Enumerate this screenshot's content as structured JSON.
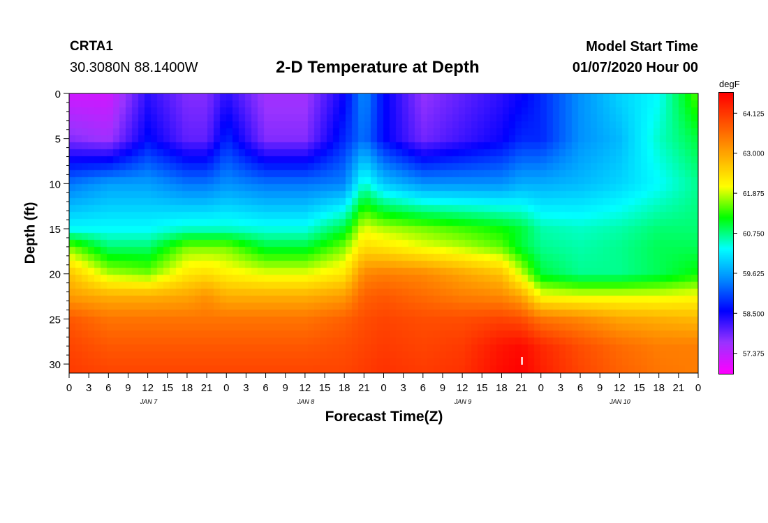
{
  "header": {
    "station_id": "CRTA1",
    "coordinates": "30.3080N 88.1400W",
    "title": "2-D Temperature at Depth",
    "model_start_label": "Model Start Time",
    "model_start_value": "01/07/2020 Hour 00"
  },
  "chart_data": {
    "type": "heatmap",
    "title": "2-D Temperature at Depth",
    "xlabel": "Forecast Time(Z)",
    "ylabel": "Depth (ft)",
    "unit": "degF",
    "x_range_hours": [
      0,
      96
    ],
    "y_range_ft": [
      0,
      31
    ],
    "y_ticks": [
      0,
      5,
      10,
      15,
      20,
      25,
      30
    ],
    "x_tick_labels": [
      "0",
      "3",
      "6",
      "9",
      "12",
      "15",
      "18",
      "21",
      "0",
      "3",
      "6",
      "9",
      "12",
      "15",
      "18",
      "21",
      "0",
      "3",
      "6",
      "9",
      "12",
      "15",
      "18",
      "21",
      "0",
      "3",
      "6",
      "9",
      "12",
      "15",
      "18",
      "21",
      "0"
    ],
    "day_labels": [
      "JAN 7",
      "JAN 8",
      "JAN 9",
      "JAN 10"
    ],
    "colorbar_ticks": [
      "64.125",
      "63.000",
      "61.875",
      "60.750",
      "59.625",
      "58.500",
      "57.375"
    ],
    "colorbar_range": [
      56.8,
      64.7
    ],
    "colors": [
      "#ff00ff",
      "#9933ff",
      "#0000ff",
      "#0088ff",
      "#00ffff",
      "#00ff00",
      "#ffff00",
      "#ffaa00",
      "#ff5500",
      "#ff0000"
    ],
    "annotation": "I",
    "grid": false,
    "depths_ft": [
      0,
      5,
      10,
      15,
      17,
      20,
      22.5,
      25,
      28,
      31
    ],
    "times_hours": [
      0,
      6,
      12,
      18,
      21,
      24,
      30,
      36,
      42,
      45,
      48,
      54,
      60,
      66,
      69,
      72,
      78,
      84,
      90,
      96
    ],
    "temperature_degF": [
      [
        57.2,
        57.2,
        58.3,
        57.8,
        57.8,
        58.3,
        57.6,
        57.6,
        58.5,
        59.5,
        58.6,
        57.7,
        58.0,
        58.3,
        58.5,
        58.8,
        59.5,
        60.0,
        60.3,
        61.5
      ],
      [
        57.8,
        57.6,
        58.6,
        58.0,
        58.0,
        58.8,
        57.8,
        57.8,
        58.8,
        59.3,
        58.6,
        57.9,
        58.2,
        58.5,
        58.8,
        58.8,
        59.5,
        59.8,
        60.5,
        61.0
      ],
      [
        59.3,
        59.6,
        59.6,
        59.3,
        59.3,
        59.5,
        59.3,
        59.3,
        59.4,
        60.5,
        59.9,
        59.5,
        59.5,
        59.5,
        59.7,
        59.7,
        59.8,
        60.0,
        60.3,
        60.7
      ],
      [
        60.3,
        60.3,
        60.3,
        60.5,
        60.5,
        60.5,
        60.4,
        60.4,
        61.0,
        62.0,
        61.8,
        61.6,
        61.4,
        61.2,
        61.0,
        60.6,
        60.5,
        60.6,
        60.8,
        60.8
      ],
      [
        61.6,
        60.8,
        60.8,
        61.6,
        61.6,
        61.6,
        61.0,
        61.0,
        61.6,
        62.4,
        62.3,
        62.0,
        61.8,
        61.5,
        61.0,
        60.7,
        60.6,
        60.7,
        60.9,
        60.9
      ],
      [
        62.7,
        61.8,
        61.6,
        62.3,
        62.4,
        62.2,
        62.0,
        62.0,
        62.3,
        63.3,
        63.4,
        63.3,
        63.0,
        62.7,
        61.9,
        61.0,
        60.7,
        60.7,
        60.9,
        61.2
      ],
      [
        63.1,
        62.9,
        62.9,
        63.0,
        63.2,
        62.9,
        62.9,
        62.9,
        63.1,
        63.7,
        63.8,
        63.6,
        63.4,
        63.3,
        63.0,
        62.1,
        62.0,
        62.0,
        62.0,
        62.1
      ],
      [
        63.8,
        63.5,
        63.5,
        63.5,
        63.5,
        63.5,
        63.5,
        63.5,
        63.7,
        63.9,
        64.0,
        63.9,
        63.9,
        64.0,
        63.9,
        63.5,
        63.3,
        63.0,
        62.9,
        62.8
      ],
      [
        64.0,
        63.8,
        63.8,
        63.8,
        63.8,
        63.8,
        63.8,
        63.8,
        63.9,
        64.0,
        64.1,
        64.0,
        64.1,
        64.5,
        64.6,
        64.3,
        63.9,
        63.6,
        63.4,
        63.4
      ],
      [
        64.1,
        64.0,
        64.0,
        64.0,
        64.0,
        64.0,
        64.0,
        64.0,
        64.0,
        64.1,
        64.2,
        64.1,
        64.2,
        64.6,
        64.7,
        64.4,
        64.0,
        63.7,
        63.5,
        63.4
      ]
    ]
  }
}
